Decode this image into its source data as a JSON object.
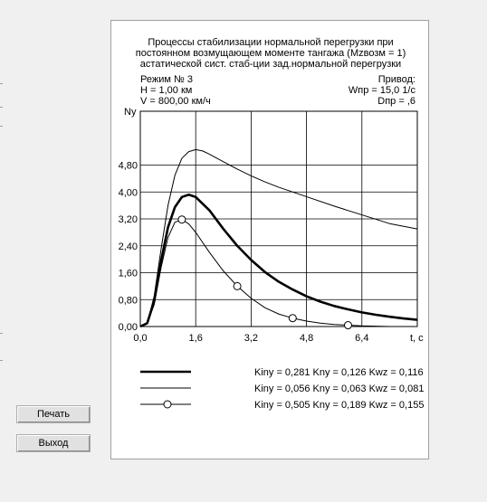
{
  "buttons": {
    "print": "Печать",
    "exit": "Выход"
  },
  "header": {
    "title_lines": [
      "Процессы стабилизации нормальной перегрузки при",
      "постоянном возмущающем моменте тангажа (Мzвозм = 1)",
      "астатической сист. стаб-ции зад.нормальной перегрузки"
    ],
    "mode": "Режим № 3",
    "altitude": "H = 1,00 км",
    "velocity": "V = 800,00 км/ч",
    "drive_label": "Привод:",
    "drive_w": "Wпр = 15,0  1/с",
    "drive_d": "Dпр = ,6"
  },
  "legend": [
    "Kiny = 0,281 Kny = 0,126 Kwz = 0,116",
    "Kiny = 0,056 Kny = 0,063 Kwz = 0,081",
    "Kiny = 0,505 Kny = 0,189 Kwz = 0,155"
  ],
  "chart_data": {
    "type": "line",
    "ylabel": "Ny",
    "xlabel": "t, c",
    "xlim": [
      0,
      8
    ],
    "ylim": [
      0,
      6.4
    ],
    "x_ticks": [
      "0,0",
      "1,6",
      "3,2",
      "4,8",
      "6,4"
    ],
    "y_ticks": [
      "0,00",
      "0,80",
      "1,60",
      "2,40",
      "3,20",
      "4,00",
      "4,80"
    ],
    "grid": true,
    "series": [
      {
        "name": "Kiny = 0,281 Kny = 0,126 Kwz = 0,116",
        "style": "thick",
        "x": [
          0,
          0.2,
          0.4,
          0.6,
          0.8,
          1.0,
          1.2,
          1.4,
          1.6,
          2.0,
          2.4,
          2.8,
          3.2,
          3.6,
          4.0,
          4.4,
          4.8,
          5.2,
          5.6,
          6.0,
          6.4,
          6.8,
          7.2,
          7.6,
          8.0
        ],
        "y": [
          0,
          0.1,
          0.75,
          1.95,
          2.95,
          3.55,
          3.85,
          3.92,
          3.85,
          3.45,
          2.9,
          2.4,
          1.98,
          1.62,
          1.33,
          1.1,
          0.9,
          0.74,
          0.61,
          0.51,
          0.42,
          0.35,
          0.29,
          0.24,
          0.2
        ]
      },
      {
        "name": "Kiny = 0,056 Kny = 0,063 Kwz = 0,081",
        "style": "thin",
        "x": [
          0,
          0.2,
          0.4,
          0.6,
          0.8,
          1.0,
          1.2,
          1.4,
          1.6,
          1.8,
          2.0,
          2.4,
          2.8,
          3.2,
          3.6,
          4.0,
          4.8,
          5.6,
          6.4,
          7.2,
          8.0
        ],
        "y": [
          0,
          0.1,
          0.9,
          2.3,
          3.6,
          4.5,
          5.0,
          5.2,
          5.26,
          5.22,
          5.12,
          4.9,
          4.68,
          4.48,
          4.3,
          4.14,
          3.86,
          3.58,
          3.32,
          3.06,
          2.9
        ]
      },
      {
        "name": "Kiny = 0,505 Kny = 0,189 Kwz = 0,155",
        "style": "thin-circles",
        "x": [
          0,
          0.2,
          0.4,
          0.6,
          0.8,
          1.0,
          1.2,
          1.4,
          1.6,
          2.0,
          2.4,
          2.8,
          3.2,
          3.6,
          4.0,
          4.4,
          4.8,
          5.2,
          5.6,
          6.0,
          6.4,
          6.8,
          7.2,
          7.6,
          8.0
        ],
        "y": [
          0,
          0.1,
          0.65,
          1.75,
          2.65,
          3.1,
          3.18,
          3.05,
          2.8,
          2.2,
          1.65,
          1.2,
          0.84,
          0.56,
          0.37,
          0.25,
          0.16,
          0.1,
          0.06,
          0.04,
          0.02,
          0.01,
          0.0,
          0.0,
          0.0
        ],
        "markers": [
          [
            1.2,
            3.18
          ],
          [
            2.8,
            1.2
          ],
          [
            4.4,
            0.25
          ],
          [
            6.0,
            0.04
          ]
        ]
      }
    ]
  }
}
